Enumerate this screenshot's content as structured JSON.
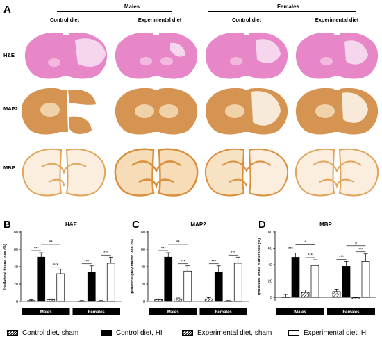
{
  "figure": {
    "panel_letters": [
      "A",
      "B",
      "C",
      "D"
    ],
    "groups": [
      "Males",
      "Females"
    ],
    "columns": [
      "Control diet",
      "Experimental diet",
      "Control diet",
      "Experimental diet"
    ],
    "rows": [
      "H&E",
      "MAP2",
      "MBP"
    ],
    "colors": {
      "he": "#e87fc3",
      "map2": "#d99a55",
      "mbp": "#e8b36a",
      "bar_black": "#000000"
    }
  },
  "legend": {
    "items": [
      {
        "label": "Control diet, sham",
        "pattern": "hatch"
      },
      {
        "label": "Control diet, HI",
        "pattern": "black"
      },
      {
        "label": "Experimental diet, sham",
        "pattern": "hatch"
      },
      {
        "label": "Experimental diet, HI",
        "pattern": "white"
      }
    ]
  },
  "chart_data": [
    {
      "type": "bar",
      "panel": "B",
      "title": "H&E",
      "ylabel": "Ipsilateral tissue loss (%)",
      "ylim": [
        0,
        80
      ],
      "yticks": [
        "0",
        "20",
        "40",
        "60",
        "80"
      ],
      "categories": [
        "Males",
        "Females"
      ],
      "series": [
        {
          "name": "Control diet, sham",
          "values": [
            1,
            0.5
          ],
          "errors": [
            1,
            0.5
          ]
        },
        {
          "name": "Control diet, HI",
          "values": [
            51,
            34
          ],
          "errors": [
            5,
            7
          ]
        },
        {
          "name": "Experimental diet, sham",
          "values": [
            2,
            0.5
          ],
          "errors": [
            1,
            0.5
          ]
        },
        {
          "name": "Experimental diet, HI",
          "values": [
            32,
            44
          ],
          "errors": [
            5,
            7
          ]
        }
      ],
      "annotations": {
        "stars": [
          [
            "***",
            "***",
            "***"
          ],
          [
            "***",
            "***"
          ]
        ],
        "bracket": "**"
      }
    },
    {
      "type": "bar",
      "panel": "C",
      "title": "MAP2",
      "ylabel": "Ipsilateral grey matter loss (%)",
      "ylim": [
        0,
        80
      ],
      "yticks": [
        "0",
        "20",
        "40",
        "60",
        "80"
      ],
      "categories": [
        "Males",
        "Females"
      ],
      "series": [
        {
          "name": "Control diet, sham",
          "values": [
            2,
            3
          ],
          "errors": [
            1,
            1.5
          ]
        },
        {
          "name": "Control diet, HI",
          "values": [
            51,
            34
          ],
          "errors": [
            5,
            7
          ]
        },
        {
          "name": "Experimental diet, sham",
          "values": [
            3,
            0.5
          ],
          "errors": [
            1,
            0.5
          ]
        },
        {
          "name": "Experimental diet, HI",
          "values": [
            35,
            44
          ],
          "errors": [
            6,
            7
          ]
        }
      ],
      "annotations": {
        "stars": [
          [
            "***",
            "***",
            "***"
          ],
          [
            "***",
            "***"
          ]
        ],
        "bracket": "**"
      }
    },
    {
      "type": "bar",
      "panel": "D",
      "title": "MBP",
      "ylabel": "Ipsilateral white matter loss (%)",
      "ylim": [
        -5,
        80
      ],
      "yticks": [
        "0",
        "20",
        "40",
        "60",
        "80"
      ],
      "categories": [
        "Males",
        "Females"
      ],
      "series": [
        {
          "name": "Control diet, sham",
          "values": [
            0.5,
            7
          ],
          "errors": [
            3,
            3
          ]
        },
        {
          "name": "Control diet, HI",
          "values": [
            49,
            38
          ],
          "errors": [
            5,
            6
          ]
        },
        {
          "name": "Experimental diet, sham",
          "values": [
            6,
            -2
          ],
          "errors": [
            3,
            1.5
          ]
        },
        {
          "name": "Experimental diet, HI",
          "values": [
            39,
            44
          ],
          "errors": [
            7,
            9
          ]
        }
      ],
      "annotations": {
        "stars": [
          [
            "***",
            "***",
            "***"
          ],
          [
            "***",
            "***"
          ]
        ],
        "bracket_males": "*",
        "bracket_females": "#"
      }
    }
  ]
}
